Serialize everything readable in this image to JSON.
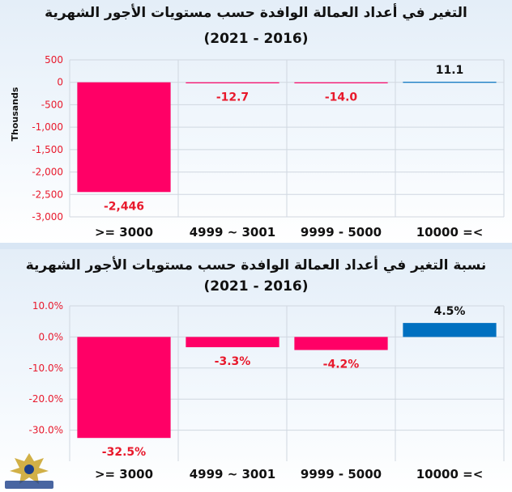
{
  "charts": {
    "top": {
      "title_line1": "التغير في أعداد العمالة الوافدة حسب مستويات الأجور الشهرية",
      "title_line2": "(2021 - 2016)"
    },
    "bottom": {
      "title_line1": "نسبة التغير في أعداد العمالة الوافدة حسب مستويات الأجور الشهرية",
      "title_line2": "(2021 - 2016)"
    }
  },
  "colors": {
    "negative": "#ff0066",
    "positive": "#0070c0",
    "negative_label": "#e8192c",
    "grid": "#d0d7e0"
  },
  "chart_data": [
    {
      "type": "bar",
      "categories": [
        ">= 3000",
        "4999 ~ 3001",
        "9999 - 5000",
        "10000 =<"
      ],
      "values": [
        -2446,
        -12.7,
        -14.0,
        11.1
      ],
      "data_labels": [
        "-2,446",
        "-12.7",
        "-14.0",
        "11.1"
      ],
      "ylabel": "Thousands",
      "ylim": [
        -3000,
        500
      ],
      "yticks": [
        500,
        0,
        -500,
        -1000,
        -1500,
        -2000,
        -2500,
        -3000
      ],
      "ytick_labels": [
        "500",
        "0",
        "-500",
        "-1,000",
        "-1,500",
        "-2,000",
        "-2,500",
        "-3,000"
      ],
      "grid": true
    },
    {
      "type": "bar",
      "categories": [
        ">= 3000",
        "4999 ~ 3001",
        "9999 - 5000",
        "10000 =<"
      ],
      "values": [
        -32.5,
        -3.3,
        -4.2,
        4.5
      ],
      "data_labels": [
        "-32.5%",
        "-3.3%",
        "-4.2%",
        "4.5%"
      ],
      "ylabel": "",
      "ylim": [
        -40,
        10
      ],
      "yticks": [
        10,
        0,
        -10,
        -20,
        -30
      ],
      "ytick_labels": [
        "10.0%",
        "0.0%",
        "-10.0%",
        "-20.0%",
        "-30.0%"
      ],
      "grid": true
    }
  ]
}
